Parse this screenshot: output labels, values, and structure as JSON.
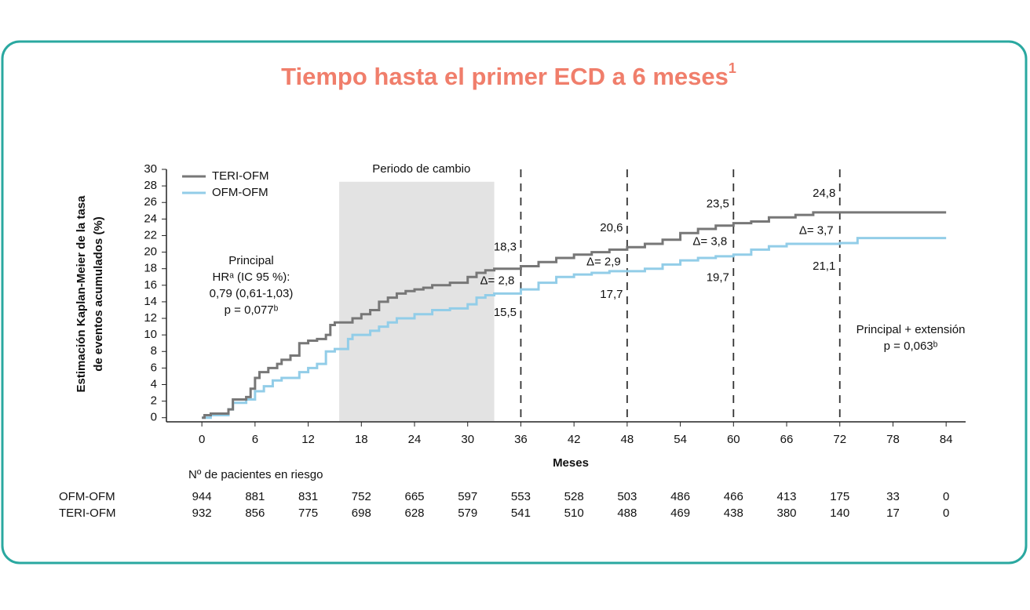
{
  "chart_data": {
    "type": "km",
    "title": "Tiempo hasta el primer ECD a 6 meses",
    "title_sup": "1",
    "xlabel": "Meses",
    "ylabel": [
      "Estimación Kaplan-Meier de la tasa",
      "de eventos acumulados (%)"
    ],
    "xlim": [
      -4,
      86.2
    ],
    "ylim": [
      -0.5,
      30
    ],
    "xticks": [
      0,
      6,
      12,
      18,
      24,
      30,
      36,
      42,
      48,
      54,
      60,
      66,
      72,
      78,
      84
    ],
    "yticks": [
      0,
      2,
      4,
      6,
      8,
      10,
      12,
      14,
      16,
      18,
      20,
      22,
      24,
      26,
      28,
      30
    ],
    "legend": "top-left",
    "series": [
      {
        "name": "TERI-OFM",
        "color": "#777777",
        "x": [
          0,
          0.3,
          1,
          3,
          3.5,
          5,
          5.5,
          6,
          6.5,
          7.5,
          8.5,
          9,
          10,
          11,
          12,
          13,
          14,
          14.5,
          15,
          17,
          18,
          19,
          20,
          21,
          22,
          23,
          24,
          25,
          26,
          28,
          30,
          31,
          32,
          33,
          36,
          38,
          40,
          42,
          44,
          46,
          48,
          50,
          52,
          54,
          56,
          58,
          60,
          62,
          64,
          67,
          69,
          84
        ],
        "values": [
          0,
          0.3,
          0.5,
          1,
          2.2,
          2.5,
          3.5,
          4.8,
          5.5,
          6,
          6.5,
          7,
          7.5,
          9,
          9.3,
          9.5,
          10,
          11.2,
          11.5,
          12,
          12.5,
          13,
          14,
          14.5,
          15,
          15.3,
          15.5,
          15.7,
          16,
          16.3,
          17,
          17.5,
          17.8,
          18,
          18.3,
          18.8,
          19.3,
          19.7,
          20,
          20.3,
          20.6,
          21,
          21.5,
          22.3,
          22.8,
          23.2,
          23.5,
          23.7,
          24.2,
          24.5,
          24.8,
          24.8
        ]
      },
      {
        "name": "OFM-OFM",
        "color": "#92cde8",
        "x": [
          0,
          1,
          3,
          3.5,
          5,
          6,
          7,
          8,
          9,
          11,
          12,
          13,
          14,
          15,
          16.5,
          17,
          19,
          20,
          21,
          22,
          24,
          26,
          28,
          30,
          31,
          32,
          33,
          36,
          38,
          40,
          42,
          44,
          46,
          50,
          52,
          54,
          56,
          58,
          60,
          62,
          64,
          66,
          72,
          74,
          84
        ],
        "values": [
          0,
          0.3,
          1,
          1.8,
          2.2,
          3.2,
          3.8,
          4.5,
          4.8,
          5.5,
          6,
          6.5,
          8,
          8.3,
          9.5,
          10,
          10.5,
          11,
          11.5,
          12,
          12.5,
          13,
          13.2,
          13.7,
          14.5,
          14.8,
          15,
          15.5,
          16.3,
          17,
          17.3,
          17.5,
          17.7,
          18,
          18.5,
          19,
          19.3,
          19.5,
          19.7,
          20.3,
          20.7,
          21,
          21.1,
          21.7,
          21.7
        ]
      }
    ],
    "shaded_region": {
      "x": [
        15.5,
        33
      ],
      "top": 28.5,
      "label": "Periodo de cambio"
    },
    "vlines": [
      36,
      48,
      60,
      72
    ],
    "milestones": [
      {
        "x": 36,
        "teri": {
          "value": 18.3,
          "label": "18,3"
        },
        "ofm": {
          "value": 15.5,
          "label": "15,5"
        },
        "delta": {
          "value": 2.8,
          "label": "Δ= 2,8"
        }
      },
      {
        "x": 48,
        "teri": {
          "value": 20.6,
          "label": "20,6"
        },
        "ofm": {
          "value": 17.7,
          "label": "17,7"
        },
        "delta": {
          "value": 2.9,
          "label": "Δ= 2,9"
        }
      },
      {
        "x": 60,
        "teri": {
          "value": 23.5,
          "label": "23,5"
        },
        "ofm": {
          "value": 19.7,
          "label": "19,7"
        },
        "delta": {
          "value": 3.8,
          "label": "Δ= 3,8"
        }
      },
      {
        "x": 72,
        "teri": {
          "value": 24.8,
          "label": "24,8"
        },
        "ofm": {
          "value": 21.1,
          "label": "21,1"
        },
        "delta": {
          "value": 3.7,
          "label": "Δ= 3,7"
        }
      }
    ],
    "note_left": [
      "Principal",
      "HRᵃ (IC 95 %):",
      "0,79 (0,61-1,03)",
      "p = 0,077ᵇ"
    ],
    "note_right": [
      "Principal + extensión",
      "p = 0,063ᵇ"
    ],
    "risk_table": {
      "title": "Nº de pacientes en riesgo",
      "rows": [
        {
          "name": "OFM-OFM",
          "values": [
            944,
            881,
            831,
            752,
            665,
            597,
            553,
            528,
            503,
            486,
            466,
            413,
            175,
            33,
            0
          ]
        },
        {
          "name": "TERI-OFM",
          "values": [
            932,
            856,
            775,
            698,
            628,
            579,
            541,
            510,
            488,
            469,
            438,
            380,
            140,
            17,
            0
          ]
        }
      ]
    }
  }
}
